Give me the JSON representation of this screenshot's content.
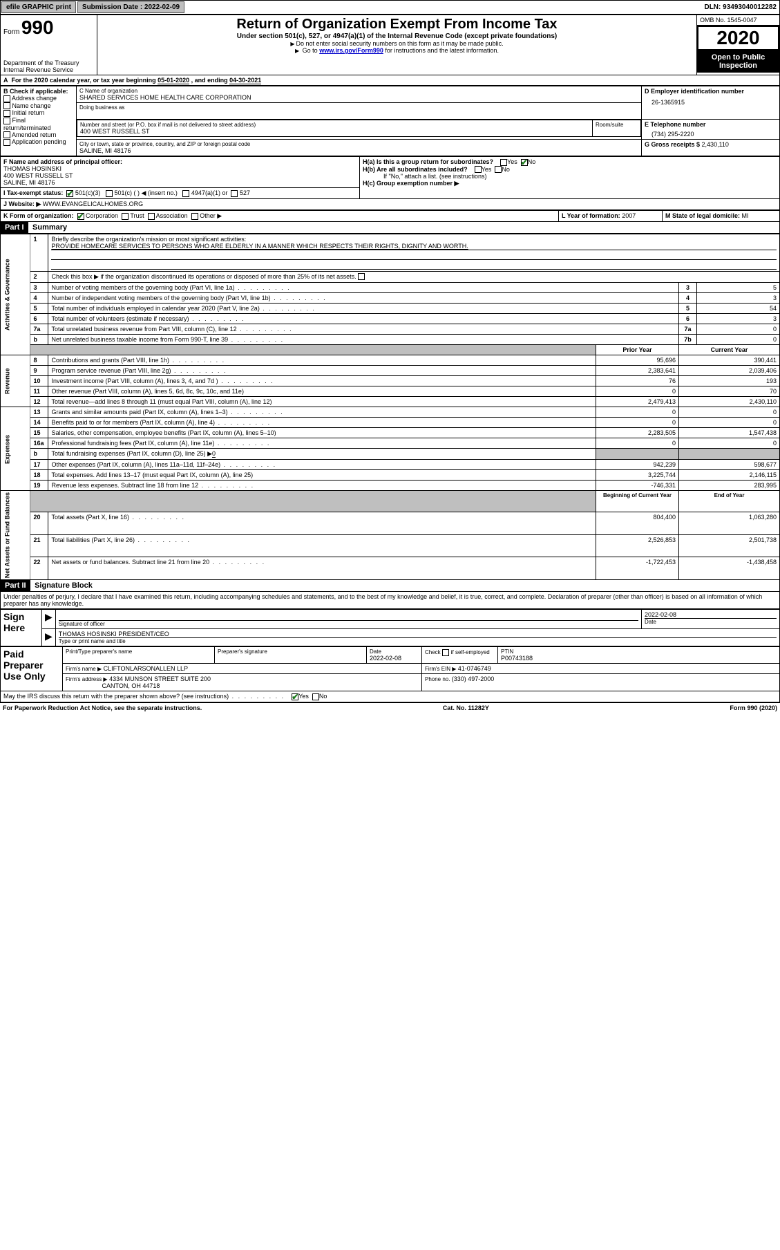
{
  "topbar": {
    "efile": "efile GRAPHIC print",
    "submission_label": "Submission Date : 2022-02-09",
    "dln": "DLN: 93493040012282"
  },
  "header": {
    "form_word": "Form",
    "form_number": "990",
    "dept": "Department of the Treasury",
    "irs": "Internal Revenue Service",
    "title": "Return of Organization Exempt From Income Tax",
    "subtitle": "Under section 501(c), 527, or 4947(a)(1) of the Internal Revenue Code (except private foundations)",
    "instr1": "Do not enter social security numbers on this form as it may be made public.",
    "instr2_pre": "Go to ",
    "instr2_link": "www.irs.gov/Form990",
    "instr2_post": " for instructions and the latest information.",
    "omb": "OMB No. 1545-0047",
    "year": "2020",
    "open": "Open to Public Inspection"
  },
  "period": {
    "text_a": "For the 2020 calendar year, or tax year beginning ",
    "begin": "05-01-2020",
    "text_b": " , and ending ",
    "end": "04-30-2021"
  },
  "boxB": {
    "label": "B Check if applicable:",
    "items": [
      "Address change",
      "Name change",
      "Initial return",
      "Final return/terminated",
      "Amended return",
      "Application pending"
    ]
  },
  "boxC": {
    "name_label": "C Name of organization",
    "name": "SHARED SERVICES HOME HEALTH CARE CORPORATION",
    "dba_label": "Doing business as",
    "street_label": "Number and street (or P.O. box if mail is not delivered to street address)",
    "room_label": "Room/suite",
    "street": "400 WEST RUSSELL ST",
    "city_label": "City or town, state or province, country, and ZIP or foreign postal code",
    "city": "SALINE, MI  48176"
  },
  "boxD": {
    "label": "D Employer identification number",
    "value": "26-1365915"
  },
  "boxE": {
    "label": "E Telephone number",
    "value": "(734) 295-2220"
  },
  "boxG": {
    "label": "G Gross receipts $ ",
    "value": "2,430,110"
  },
  "boxF": {
    "label": "F  Name and address of principal officer:",
    "name": "THOMAS HOSINSKI",
    "street": "400 WEST RUSSELL ST",
    "city": "SALINE, MI  48176"
  },
  "boxH": {
    "a_label": "H(a)  Is this a group return for subordinates?",
    "b_label": "H(b)  Are all subordinates included?",
    "b_note": "If \"No,\" attach a list. (see instructions)",
    "c_label": "H(c)  Group exemption number ▶",
    "yes": "Yes",
    "no": "No"
  },
  "boxI": {
    "label": "I     Tax-exempt status:",
    "opts": [
      "501(c)(3)",
      "501(c) (  ) ◀ (insert no.)",
      "4947(a)(1) or",
      "527"
    ]
  },
  "boxJ": {
    "label": "J     Website: ▶",
    "value": " WWW.EVANGELICALHOMES.ORG"
  },
  "boxK": {
    "label": "K Form of organization:",
    "opts": [
      "Corporation",
      "Trust",
      "Association",
      "Other ▶"
    ]
  },
  "boxL": {
    "label": "L Year of formation: ",
    "value": "2007"
  },
  "boxM": {
    "label": "M State of legal domicile: ",
    "value": "MI"
  },
  "part1": {
    "hdr": "Part I",
    "title": "Summary"
  },
  "gov": {
    "v": "Activities & Governance",
    "l1": "Briefly describe the organization's mission or most significant activities:",
    "mission": "PROVIDE HOMECARE SERVICES TO PERSONS WHO ARE ELDERLY IN A MANNER WHICH RESPECTS THEIR RIGHTS, DIGNITY AND WORTH.",
    "l2": "Check this box ▶        if the organization discontinued its operations or disposed of more than 25% of its net assets.",
    "l3": "Number of voting members of the governing body (Part VI, line 1a)",
    "l4": "Number of independent voting members of the governing body (Part VI, line 1b)",
    "l5": "Total number of individuals employed in calendar year 2020 (Part V, line 2a)",
    "l6": "Total number of volunteers (estimate if necessary)",
    "l7a": "Total unrelated business revenue from Part VIII, column (C), line 12",
    "l7b": "Net unrelated business taxable income from Form 990-T, line 39",
    "v3": "5",
    "v4": "3",
    "v5": "54",
    "v6": "3",
    "v7a": "0",
    "v7b": "0"
  },
  "rev": {
    "v": "Revenue",
    "prior": "Prior Year",
    "current": "Current Year",
    "l8": "Contributions and grants (Part VIII, line 1h)",
    "l9": "Program service revenue (Part VIII, line 2g)",
    "l10": "Investment income (Part VIII, column (A), lines 3, 4, and 7d )",
    "l11": "Other revenue (Part VIII, column (A), lines 5, 6d, 8c, 9c, 10c, and 11e)",
    "l12": "Total revenue—add lines 8 through 11 (must equal Part VIII, column (A), line 12)",
    "p8": "95,696",
    "c8": "390,441",
    "p9": "2,383,641",
    "c9": "2,039,406",
    "p10": "76",
    "c10": "193",
    "p11": "0",
    "c11": "70",
    "p12": "2,479,413",
    "c12": "2,430,110"
  },
  "exp": {
    "v": "Expenses",
    "l13": "Grants and similar amounts paid (Part IX, column (A), lines 1–3)",
    "l14": "Benefits paid to or for members (Part IX, column (A), line 4)",
    "l15": "Salaries, other compensation, employee benefits (Part IX, column (A), lines 5–10)",
    "l16a": "Professional fundraising fees (Part IX, column (A), line 11e)",
    "l16b_pre": "Total fundraising expenses (Part IX, column (D), line 25) ▶",
    "l16b_val": "0",
    "l17": "Other expenses (Part IX, column (A), lines 11a–11d, 11f–24e)",
    "l18": "Total expenses. Add lines 13–17 (must equal Part IX, column (A), line 25)",
    "l19": "Revenue less expenses. Subtract line 18 from line 12",
    "p13": "0",
    "c13": "0",
    "p14": "0",
    "c14": "0",
    "p15": "2,283,505",
    "c15": "1,547,438",
    "p16a": "0",
    "c16a": "0",
    "p17": "942,239",
    "c17": "598,677",
    "p18": "3,225,744",
    "c18": "2,146,115",
    "p19": "-746,331",
    "c19": "283,995"
  },
  "net": {
    "v": "Net Assets or Fund Balances",
    "begin": "Beginning of Current Year",
    "end": "End of Year",
    "l20": "Total assets (Part X, line 16)",
    "l21": "Total liabilities (Part X, line 26)",
    "l22": "Net assets or fund balances. Subtract line 21 from line 20",
    "b20": "804,400",
    "e20": "1,063,280",
    "b21": "2,526,853",
    "e21": "2,501,738",
    "b22": "-1,722,453",
    "e22": "-1,438,458"
  },
  "part2": {
    "hdr": "Part II",
    "title": "Signature Block",
    "perjury": "Under penalties of perjury, I declare that I have examined this return, including accompanying schedules and statements, and to the best of my knowledge and belief, it is true, correct, and complete. Declaration of preparer (other than officer) is based on all information of which preparer has any knowledge."
  },
  "sign": {
    "here": "Sign Here",
    "sig_label": "Signature of officer",
    "date_label": "Date",
    "date": "2022-02-08",
    "name": "THOMAS HOSINSKI  PRESIDENT/CEO",
    "name_label": "Type or print name and title"
  },
  "paid": {
    "here": "Paid Preparer Use Only",
    "h1": "Print/Type preparer's name",
    "h2": "Preparer's signature",
    "h3": "Date",
    "date": "2022-02-08",
    "h4_pre": "Check",
    "h4_post": "if self-employed",
    "h5": "PTIN",
    "ptin": "P00743188",
    "firm_label": "Firm's name    ▶",
    "firm": "CLIFTONLARSONALLEN LLP",
    "ein_label": "Firm's EIN ▶ ",
    "ein": "41-0746749",
    "addr_label": "Firm's address ▶",
    "addr1": "4334 MUNSON STREET SUITE 200",
    "addr2": "CANTON, OH  44718",
    "phone_label": "Phone no. ",
    "phone": "(330) 497-2000",
    "discuss": "May the IRS discuss this return with the preparer shown above? (see instructions)"
  },
  "footer": {
    "left": "For Paperwork Reduction Act Notice, see the separate instructions.",
    "mid": "Cat. No. 11282Y",
    "right": "Form 990 (2020)"
  }
}
